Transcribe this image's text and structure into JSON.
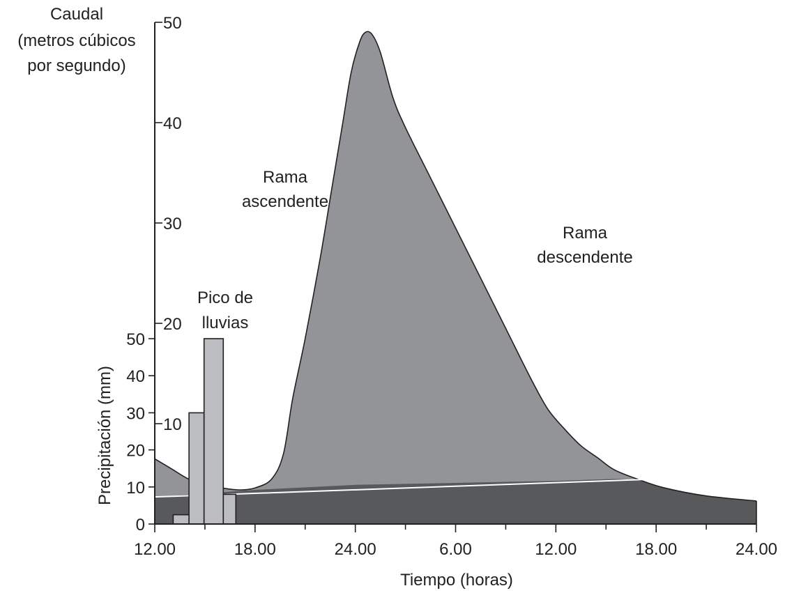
{
  "chart_data": {
    "type": "area",
    "title": "",
    "colors": {
      "quickflow": "#939497",
      "baseflow": "#58595b",
      "rain_bars": "#bcbdc0",
      "separator": "#ffffff",
      "outline": "#231f20"
    },
    "discharge_axis": {
      "label_lines": [
        "Caudal",
        "(metros cúbicos",
        "por segundo)"
      ],
      "ticks": [
        10,
        20,
        30,
        40,
        50
      ],
      "ylim": [
        0,
        50
      ]
    },
    "precip_axis": {
      "label": "Precipitación (mm)",
      "ticks": [
        0,
        10,
        20,
        30,
        40,
        50
      ],
      "ylim": [
        0,
        50
      ]
    },
    "x_axis": {
      "label": "Tiempo (horas)",
      "range_hours": [
        0,
        72
      ],
      "tick_labels": [
        {
          "hour": 0,
          "text": "12.00"
        },
        {
          "hour": 12,
          "text": "18.00"
        },
        {
          "hour": 24,
          "text": "24.00"
        },
        {
          "hour": 36,
          "text": "6.00"
        },
        {
          "hour": 48,
          "text": "12.00"
        },
        {
          "hour": 60,
          "text": "18.00"
        },
        {
          "hour": 72,
          "text": "24.00"
        }
      ],
      "minor_tick_hours": [
        6,
        18,
        30,
        42,
        54,
        66
      ]
    },
    "hydrograph": {
      "total_discharge": [
        [
          0,
          6.5
        ],
        [
          2,
          5.5
        ],
        [
          4,
          4.5
        ],
        [
          6,
          3.9
        ],
        [
          8,
          3.6
        ],
        [
          10,
          3.4
        ],
        [
          12,
          3.6
        ],
        [
          14,
          4.5
        ],
        [
          15.4,
          7.0
        ],
        [
          16.5,
          12.5
        ],
        [
          18,
          18.5
        ],
        [
          19.8,
          26.5
        ],
        [
          21.2,
          33.5
        ],
        [
          22.5,
          40.0
        ],
        [
          23.5,
          45.0
        ],
        [
          24.5,
          48.0
        ],
        [
          25.2,
          49.0
        ],
        [
          26,
          48.8
        ],
        [
          27,
          47.0
        ],
        [
          28.5,
          42.5
        ],
        [
          30,
          39.5
        ],
        [
          33,
          34.5
        ],
        [
          36,
          29.5
        ],
        [
          39,
          24.5
        ],
        [
          42,
          19.5
        ],
        [
          45,
          14.5
        ],
        [
          47,
          11.5
        ],
        [
          49,
          9.5
        ],
        [
          51,
          7.8
        ],
        [
          53,
          6.6
        ],
        [
          55,
          5.4
        ],
        [
          58,
          4.4
        ],
        [
          61,
          3.6
        ],
        [
          66,
          2.8
        ],
        [
          72,
          2.3
        ]
      ],
      "baseflow": [
        [
          0,
          2.7
        ],
        [
          12,
          3.4
        ],
        [
          24,
          3.9
        ],
        [
          36,
          4.1
        ],
        [
          48,
          4.3
        ],
        [
          55,
          4.5
        ],
        [
          58,
          4.4
        ],
        [
          61,
          3.6
        ],
        [
          66,
          2.8
        ],
        [
          72,
          2.3
        ]
      ],
      "separation_line": [
        [
          0,
          2.7
        ],
        [
          62.5,
          4.55
        ]
      ]
    },
    "precipitation": [
      {
        "from": 2.2,
        "to": 4.1,
        "value": 2.5
      },
      {
        "from": 4.1,
        "to": 5.9,
        "value": 30
      },
      {
        "from": 5.9,
        "to": 8.2,
        "value": 50
      },
      {
        "from": 8.2,
        "to": 9.7,
        "value": 8
      }
    ],
    "annotations": [
      {
        "id": "rising",
        "lines": [
          "Rama",
          "ascendente"
        ]
      },
      {
        "id": "falling",
        "lines": [
          "Rama",
          "descendente"
        ]
      },
      {
        "id": "rain_peak",
        "lines": [
          "Pico de",
          "lluvias"
        ]
      }
    ]
  }
}
